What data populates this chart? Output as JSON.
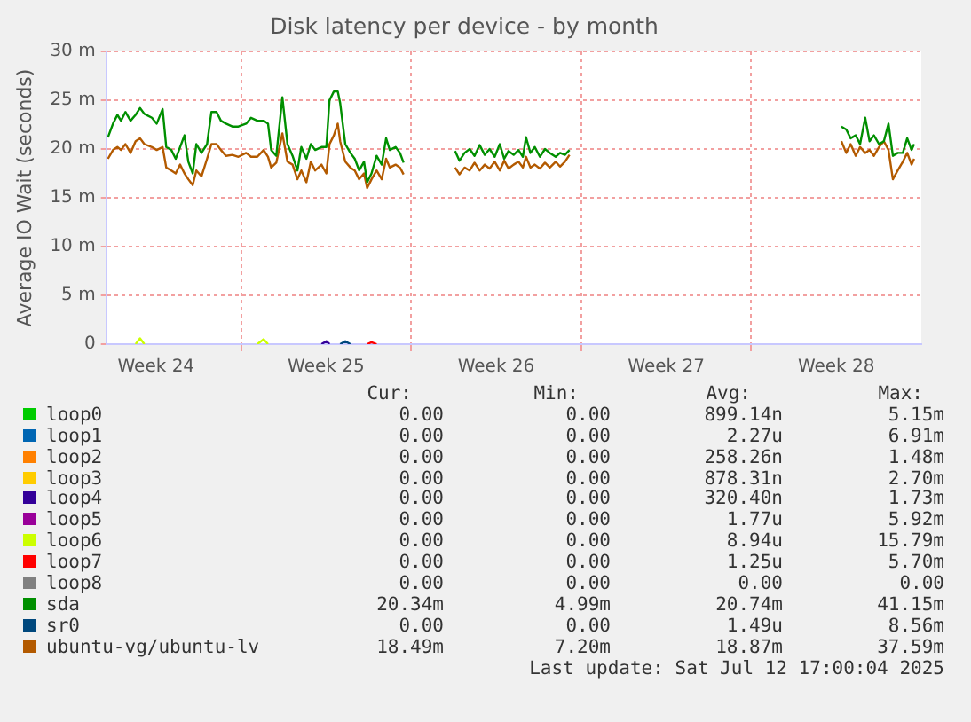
{
  "chart_data": {
    "type": "line",
    "title": "Disk latency per device - by month",
    "ylabel": "Average IO Wait (seconds)",
    "xlim": [
      "2025-06-09T10:48",
      "2025-07-13T00:00"
    ],
    "xticks": [
      {
        "value": "2025-06-11T12:00",
        "label": "Week 24"
      },
      {
        "value": "2025-06-15T00:00",
        "label": null
      },
      {
        "value": "2025-06-18T12:00",
        "label": "Week 25"
      },
      {
        "value": "2025-06-22T00:00",
        "label": null
      },
      {
        "value": "2025-06-25T12:00",
        "label": "Week 26"
      },
      {
        "value": "2025-06-29T00:00",
        "label": null
      },
      {
        "value": "2025-07-02T12:00",
        "label": "Week 27"
      },
      {
        "value": "2025-07-06T00:00",
        "label": null
      },
      {
        "value": "2025-07-09T12:00",
        "label": "Week 28"
      }
    ],
    "ylim": [
      0,
      30
    ],
    "yticks": [
      0,
      {
        "value": 5,
        "label": "5 m"
      },
      {
        "value": 10,
        "label": "10 m"
      },
      {
        "value": 15,
        "label": "15 m"
      },
      {
        "value": 20,
        "label": "20 m"
      },
      {
        "value": 25,
        "label": "25 m"
      },
      {
        "value": 30,
        "label": "30 m"
      }
    ],
    "grid": true,
    "legend": "bottom",
    "marker": "none",
    "line_style": "solid",
    "x": [
      "2025-06-09T12:29",
      "2025-06-09T17:31",
      "2025-06-09T21:50",
      "2025-06-10T01:26",
      "2025-06-10T05:46",
      "2025-06-10T10:48",
      "2025-06-10T15:50",
      "2025-06-10T20:10",
      "2025-06-11T00:29",
      "2025-06-11T07:55",
      "2025-06-11T12:43",
      "2025-06-11T18:29",
      "2025-06-11T22:05",
      "2025-06-12T03:07",
      "2025-06-12T07:26",
      "2025-06-12T11:46",
      "2025-06-12T16:05",
      "2025-06-12T19:55",
      "2025-06-13T00:14",
      "2025-06-13T03:50",
      "2025-06-13T08:53",
      "2025-06-13T14:24",
      "2025-06-13T18:43",
      "2025-06-13T23:46",
      "2025-06-14T04:05",
      "2025-06-14T09:07",
      "2025-06-14T15:22",
      "2025-06-14T21:22",
      "2025-06-15T05:02",
      "2025-06-15T09:50",
      "2025-06-15T16:05",
      "2025-06-15T22:19",
      "2025-06-16T02:38",
      "2025-06-16T05:46",
      "2025-06-16T10:48",
      "2025-06-16T16:48",
      "2025-06-16T21:50",
      "2025-06-17T02:53",
      "2025-06-17T07:41",
      "2025-06-17T11:31",
      "2025-06-17T16:34",
      "2025-06-17T20:53",
      "2025-06-18T01:12",
      "2025-06-18T07:26",
      "2025-06-18T12:14",
      "2025-06-18T15:22",
      "2025-06-18T19:41",
      "2025-06-18T23:31",
      "2025-06-19T01:55",
      "2025-06-19T06:58",
      "2025-06-19T12:00",
      "2025-06-19T16:19",
      "2025-06-19T20:38",
      "2025-06-20T01:26",
      "2025-06-20T04:34",
      "2025-06-20T08:53",
      "2025-06-20T13:55",
      "2025-06-20T18:58",
      "2025-06-20T23:17",
      "2025-06-21T02:53",
      "2025-06-21T08:38",
      "2025-06-21T12:58",
      "2025-06-21T16:34",
      "2025-06-23T00:00",
      "2025-06-23T19:26",
      "2025-06-23T23:46",
      "2025-06-24T04:48",
      "2025-06-24T09:50",
      "2025-06-24T14:38",
      "2025-06-24T19:41",
      "2025-06-25T00:43",
      "2025-06-25T05:31",
      "2025-06-25T10:34",
      "2025-06-25T15:36",
      "2025-06-25T19:55",
      "2025-06-26T00:14",
      "2025-06-26T05:17",
      "2025-06-26T10:05",
      "2025-06-26T14:24",
      "2025-06-26T17:31",
      "2025-06-26T21:50",
      "2025-06-27T02:10",
      "2025-06-27T07:12",
      "2025-06-27T12:14",
      "2025-06-27T17:02",
      "2025-06-27T22:48",
      "2025-06-28T03:07",
      "2025-06-28T07:55",
      "2025-06-28T12:29",
      "2025-07-03T00:00",
      "2025-07-09T17:02",
      "2025-07-09T21:50",
      "2025-07-10T02:10",
      "2025-07-10T07:12",
      "2025-07-10T11:31",
      "2025-07-10T16:34",
      "2025-07-10T20:53",
      "2025-07-11T01:12",
      "2025-07-11T06:14",
      "2025-07-11T11:02",
      "2025-07-11T15:36",
      "2025-07-11T19:55",
      "2025-07-12T00:43",
      "2025-07-12T05:46",
      "2025-07-12T10:05",
      "2025-07-12T14:24",
      "2025-07-12T16:55"
    ],
    "series": [
      {
        "name": "loop0",
        "color": "#00cc00",
        "values": [
          null,
          null,
          null,
          null,
          null,
          null,
          null,
          null,
          null,
          null,
          null,
          null,
          null,
          null,
          null,
          null,
          null,
          null,
          null,
          null,
          null,
          null,
          null,
          null,
          null,
          null,
          null,
          null,
          null,
          null,
          null,
          null,
          null,
          null,
          null,
          null,
          null,
          null,
          null,
          null,
          null,
          null,
          null,
          null,
          null,
          null,
          null,
          null,
          null,
          null,
          null,
          null,
          null,
          null,
          null,
          null,
          null,
          null,
          null,
          null,
          null,
          null,
          null,
          null,
          null,
          null,
          null,
          null,
          null,
          null,
          null,
          null,
          null,
          null,
          null,
          null,
          null,
          null,
          null,
          null,
          null,
          null,
          null,
          null,
          null,
          null,
          null,
          null,
          null,
          null,
          null,
          null,
          null,
          null,
          null,
          null,
          null,
          null,
          null,
          null,
          null,
          null,
          null,
          null,
          null,
          null,
          null
        ]
      },
      {
        "name": "loop1",
        "color": "#0066b3",
        "values": [
          null,
          null,
          null,
          null,
          null,
          null,
          null,
          null,
          null,
          null,
          null,
          null,
          null,
          null,
          null,
          null,
          null,
          null,
          null,
          null,
          null,
          null,
          null,
          null,
          null,
          null,
          null,
          null,
          null,
          null,
          null,
          null,
          null,
          null,
          null,
          null,
          null,
          null,
          null,
          null,
          null,
          null,
          null,
          null,
          null,
          null,
          null,
          null,
          null,
          null,
          null,
          null,
          null,
          null,
          null,
          null,
          null,
          null,
          null,
          null,
          null,
          null,
          null,
          null,
          null,
          null,
          null,
          null,
          null,
          null,
          null,
          null,
          null,
          null,
          null,
          null,
          null,
          null,
          null,
          null,
          null,
          null,
          null,
          null,
          null,
          null,
          null,
          null,
          null,
          null,
          null,
          null,
          null,
          null,
          null,
          null,
          null,
          null,
          null,
          null,
          null,
          null,
          null,
          null,
          null,
          null,
          null
        ]
      },
      {
        "name": "loop2",
        "color": "#ff8000",
        "values": [
          null,
          null,
          null,
          null,
          null,
          null,
          null,
          null,
          null,
          null,
          null,
          null,
          null,
          null,
          null,
          null,
          null,
          null,
          null,
          null,
          null,
          null,
          null,
          null,
          null,
          null,
          null,
          null,
          null,
          null,
          null,
          null,
          null,
          null,
          null,
          null,
          null,
          null,
          null,
          null,
          null,
          null,
          null,
          null,
          null,
          null,
          null,
          null,
          null,
          null,
          null,
          null,
          null,
          null,
          null,
          null,
          null,
          null,
          null,
          null,
          null,
          null,
          null,
          null,
          null,
          null,
          null,
          null,
          null,
          null,
          null,
          null,
          null,
          null,
          null,
          null,
          null,
          null,
          null,
          null,
          null,
          null,
          null,
          null,
          null,
          null,
          null,
          null,
          null,
          null,
          null,
          null,
          null,
          null,
          null,
          null,
          null,
          null,
          null,
          null,
          null,
          null,
          null,
          null,
          null,
          null,
          null
        ]
      },
      {
        "name": "loop3",
        "color": "#ffcc00",
        "values": [
          null,
          null,
          null,
          null,
          null,
          null,
          null,
          null,
          null,
          null,
          null,
          null,
          null,
          null,
          null,
          null,
          null,
          null,
          null,
          null,
          null,
          null,
          null,
          null,
          null,
          null,
          null,
          null,
          null,
          null,
          null,
          null,
          null,
          null,
          null,
          null,
          null,
          null,
          null,
          null,
          null,
          null,
          null,
          null,
          null,
          null,
          null,
          null,
          null,
          null,
          null,
          null,
          null,
          null,
          null,
          null,
          null,
          null,
          null,
          null,
          null,
          null,
          null,
          null,
          null,
          null,
          null,
          null,
          null,
          null,
          null,
          null,
          null,
          null,
          null,
          null,
          null,
          null,
          null,
          null,
          null,
          null,
          null,
          null,
          null,
          null,
          null,
          null,
          null,
          null,
          null,
          null,
          null,
          null,
          null,
          null,
          null,
          null,
          null,
          null,
          null,
          null,
          null,
          null,
          null,
          null,
          null
        ]
      },
      {
        "name": "loop4",
        "color": "#330099",
        "x": [
          "2025-06-18T07:26",
          "2025-06-18T12:14",
          "2025-06-18T15:22"
        ],
        "values": [
          0,
          0.3,
          0
        ]
      },
      {
        "name": "loop5",
        "color": "#990099",
        "values": [
          null,
          null,
          null,
          null,
          null,
          null,
          null,
          null,
          null,
          null,
          null,
          null,
          null,
          null,
          null,
          null,
          null,
          null,
          null,
          null,
          null,
          null,
          null,
          null,
          null,
          null,
          null,
          null,
          null,
          null,
          null,
          null,
          null,
          null,
          null,
          null,
          null,
          null,
          null,
          null,
          null,
          null,
          null,
          null,
          null,
          null,
          null,
          null,
          null,
          null,
          null,
          null,
          null,
          null,
          null,
          null,
          null,
          null,
          null,
          null,
          null,
          null,
          null,
          null,
          null,
          null,
          null,
          null,
          null,
          null,
          null,
          null,
          null,
          null,
          null,
          null,
          null,
          null,
          null,
          null,
          null,
          null,
          null,
          null,
          null,
          null,
          null,
          null,
          null,
          null,
          null,
          null,
          null,
          null,
          null,
          null,
          null,
          null,
          null,
          null,
          null,
          null,
          null,
          null,
          null,
          null,
          null
        ]
      },
      {
        "name": "loop6",
        "color": "#ccff00",
        "x": [
          "2025-06-10T15:50",
          "2025-06-10T20:10",
          "2025-06-11T00:29",
          "2025-06-11T01:00",
          "2025-06-15T16:05",
          "2025-06-15T22:19",
          "2025-06-16T02:38"
        ],
        "values": [
          0,
          0.6,
          0,
          null,
          0,
          0.5,
          0
        ]
      },
      {
        "name": "loop7",
        "color": "#ff0000",
        "x": [
          "2025-06-20T04:34",
          "2025-06-20T08:53",
          "2025-06-20T13:55"
        ],
        "values": [
          0,
          0.2,
          0
        ]
      },
      {
        "name": "loop8",
        "color": "#808080",
        "values": [
          null,
          null,
          null,
          null,
          null,
          null,
          null,
          null,
          null,
          null,
          null,
          null,
          null,
          null,
          null,
          null,
          null,
          null,
          null,
          null,
          null,
          null,
          null,
          null,
          null,
          null,
          null,
          null,
          null,
          null,
          null,
          null,
          null,
          null,
          null,
          null,
          null,
          null,
          null,
          null,
          null,
          null,
          null,
          null,
          null,
          null,
          null,
          null,
          null,
          null,
          null,
          null,
          null,
          null,
          null,
          null,
          null,
          null,
          null,
          null,
          null,
          null,
          null,
          null,
          null,
          null,
          null,
          null,
          null,
          null,
          null,
          null,
          null,
          null,
          null,
          null,
          null,
          null,
          null,
          null,
          null,
          null,
          null,
          null,
          null,
          null,
          null,
          null,
          null,
          null,
          null,
          null,
          null,
          null,
          null,
          null,
          null,
          null,
          null,
          null,
          null,
          null,
          null,
          null,
          null,
          null,
          null
        ]
      },
      {
        "name": "sda",
        "color": "#008f00",
        "values": [
          21.2,
          22.6,
          23.5,
          22.9,
          23.8,
          22.9,
          23.5,
          24.2,
          23.6,
          23.2,
          22.6,
          24.1,
          20.2,
          19.9,
          19.0,
          20.2,
          21.4,
          18.7,
          17.5,
          20.5,
          19.6,
          20.5,
          23.8,
          23.8,
          22.9,
          22.6,
          22.3,
          22.3,
          22.6,
          23.2,
          22.9,
          22.9,
          22.6,
          19.9,
          19.3,
          25.3,
          20.5,
          19.3,
          17.8,
          20.2,
          19.0,
          20.5,
          19.9,
          20.2,
          20.2,
          25.0,
          25.9,
          25.9,
          24.7,
          20.5,
          19.6,
          19.0,
          17.8,
          18.7,
          16.6,
          17.5,
          19.3,
          18.4,
          21.1,
          19.9,
          20.2,
          19.6,
          18.6,
          null,
          19.8,
          18.8,
          19.6,
          20.0,
          19.3,
          20.4,
          19.4,
          20.0,
          19.2,
          20.5,
          19.0,
          19.8,
          19.4,
          19.9,
          19.2,
          21.2,
          19.6,
          20.2,
          19.2,
          20.0,
          19.6,
          19.2,
          19.6,
          19.4,
          19.9,
          null,
          22.3,
          22.0,
          21.1,
          21.4,
          20.5,
          23.2,
          20.8,
          21.4,
          20.5,
          20.8,
          22.6,
          19.3,
          19.6,
          19.6,
          21.1,
          19.9,
          20.5
        ]
      },
      {
        "name": "sr0",
        "color": "#00487d",
        "x": [
          "2025-06-19T01:55",
          "2025-06-19T06:58",
          "2025-06-19T12:00"
        ],
        "values": [
          0,
          0.3,
          0
        ]
      },
      {
        "name": "ubuntu-vg/ubuntu-lv",
        "color": "#b35a00",
        "values": [
          19.0,
          19.9,
          20.2,
          19.9,
          20.5,
          19.6,
          20.8,
          21.1,
          20.5,
          20.2,
          19.9,
          20.2,
          18.1,
          17.8,
          17.5,
          18.4,
          17.5,
          16.9,
          16.3,
          17.8,
          17.2,
          19.0,
          20.5,
          20.5,
          19.9,
          19.3,
          19.4,
          19.2,
          19.6,
          19.2,
          19.2,
          19.9,
          19.2,
          18.1,
          18.6,
          21.6,
          18.7,
          18.4,
          16.9,
          17.8,
          16.6,
          18.7,
          17.8,
          18.4,
          17.5,
          20.5,
          21.4,
          22.6,
          20.8,
          18.7,
          18.1,
          17.8,
          16.9,
          17.5,
          16.0,
          16.9,
          17.8,
          16.9,
          19.0,
          18.1,
          18.4,
          18.1,
          17.4,
          null,
          18.1,
          17.4,
          18.1,
          17.8,
          18.6,
          17.8,
          18.4,
          18.0,
          18.7,
          17.8,
          18.8,
          18.0,
          18.4,
          18.7,
          18.1,
          19.2,
          18.1,
          18.4,
          18.0,
          18.6,
          18.1,
          18.7,
          18.2,
          18.7,
          19.4,
          null,
          20.8,
          19.6,
          20.5,
          19.3,
          20.2,
          19.6,
          19.9,
          19.3,
          20.2,
          20.8,
          19.9,
          16.9,
          17.8,
          18.7,
          19.6,
          18.4,
          19.0
        ]
      }
    ],
    "annotations": [
      "Cur:",
      "Min:",
      "Avg:",
      "Max:",
      "0.00",
      "0.00",
      "899.14n",
      "5.15m",
      "0.00",
      "0.00",
      "2.27u",
      "6.91m",
      "0.00",
      "0.00",
      "258.26n",
      "1.48m",
      "0.00",
      "0.00",
      "878.31n",
      "2.70m",
      "0.00",
      "0.00",
      "320.40n",
      "1.73m",
      "0.00",
      "0.00",
      "1.77u",
      "5.92m",
      "0.00",
      "0.00",
      "8.94u",
      "15.79m",
      "0.00",
      "0.00",
      "1.25u",
      "5.70m",
      "0.00",
      "0.00",
      "0.00",
      "0.00",
      "20.34m",
      "4.99m",
      "20.74m",
      "41.15m",
      "0.00",
      "0.00",
      "1.49u",
      "8.56m",
      "18.49m",
      "7.20m",
      "18.87m",
      "37.59m",
      "Last update: Sat Jul 12 17:00:04 2025"
    ]
  }
}
